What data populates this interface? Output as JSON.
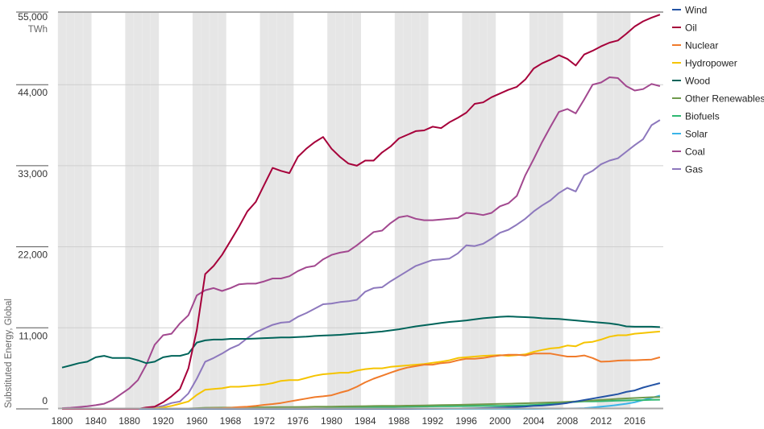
{
  "chart_data": {
    "type": "line",
    "title": "",
    "ylabel": "Substituted Energy, Global",
    "yunit": "TWh",
    "ylim": [
      0,
      54000
    ],
    "yticks": [
      0,
      11000,
      22000,
      33000,
      44000,
      55000
    ],
    "ytick_labels": [
      "0",
      "11,000",
      "22,000",
      "33,000",
      "44,000",
      "55,000"
    ],
    "xtick_labels": [
      "1800",
      "1840",
      "1880",
      "1920",
      "1960",
      "1968",
      "1972",
      "1976",
      "1980",
      "1984",
      "1988",
      "1992",
      "1996",
      "2000",
      "2004",
      "2008",
      "2012",
      "2016"
    ],
    "grid": true,
    "legend_position": "right",
    "x": [
      1800,
      1810,
      1820,
      1830,
      1840,
      1850,
      1860,
      1870,
      1880,
      1890,
      1900,
      1910,
      1920,
      1930,
      1940,
      1950,
      1960,
      1965,
      1966,
      1967,
      1968,
      1969,
      1970,
      1971,
      1972,
      1973,
      1974,
      1975,
      1976,
      1977,
      1978,
      1979,
      1980,
      1981,
      1982,
      1983,
      1984,
      1985,
      1986,
      1987,
      1988,
      1989,
      1990,
      1991,
      1992,
      1993,
      1994,
      1995,
      1996,
      1997,
      1998,
      1999,
      2000,
      2001,
      2002,
      2003,
      2004,
      2005,
      2006,
      2007,
      2008,
      2009,
      2010,
      2011,
      2012,
      2013,
      2014,
      2015,
      2016,
      2017,
      2018,
      2019
    ],
    "series": [
      {
        "name": "Wind",
        "color": "#2353a5",
        "values": [
          0,
          0,
          0,
          0,
          0,
          0,
          0,
          0,
          0,
          0,
          0,
          0,
          0,
          0,
          0,
          0,
          0,
          0,
          0,
          0,
          0,
          0,
          0,
          0,
          0,
          0,
          0,
          0,
          0,
          0,
          0,
          0,
          0,
          0,
          0,
          0,
          0,
          0,
          0,
          0,
          0,
          0,
          10,
          20,
          30,
          40,
          50,
          60,
          70,
          90,
          110,
          140,
          180,
          220,
          270,
          320,
          400,
          450,
          550,
          650,
          800,
          1000,
          1200,
          1400,
          1600,
          1800,
          2000,
          2300,
          2500,
          2900,
          3200,
          3500
        ]
      },
      {
        "name": "Oil",
        "color": "#a6003a",
        "values": [
          0,
          0,
          0,
          0,
          0,
          0,
          0,
          0,
          0,
          0,
          200,
          300,
          900,
          1700,
          2700,
          5500,
          10700,
          18300,
          19400,
          20900,
          22800,
          24700,
          26800,
          28100,
          30400,
          32700,
          32300,
          32000,
          34200,
          35300,
          36200,
          36900,
          35300,
          34200,
          33300,
          33000,
          33700,
          33700,
          34800,
          35600,
          36700,
          37200,
          37700,
          37800,
          38300,
          38100,
          38900,
          39500,
          40200,
          41400,
          41600,
          42300,
          42800,
          43300,
          43700,
          44700,
          46200,
          46900,
          47400,
          48000,
          47500,
          46600,
          48100,
          48600,
          49200,
          49700,
          50000,
          50900,
          51900,
          52600,
          53100,
          53500
        ]
      },
      {
        "name": "Nuclear",
        "color": "#f07b2b",
        "values": [
          0,
          0,
          0,
          0,
          0,
          0,
          0,
          0,
          0,
          0,
          0,
          0,
          0,
          0,
          0,
          0,
          0,
          50,
          80,
          100,
          150,
          250,
          300,
          400,
          550,
          650,
          800,
          1000,
          1200,
          1400,
          1600,
          1700,
          1850,
          2200,
          2500,
          3000,
          3600,
          4100,
          4500,
          4900,
          5300,
          5600,
          5800,
          6000,
          6000,
          6200,
          6300,
          6600,
          6800,
          6800,
          6900,
          7100,
          7250,
          7350,
          7350,
          7250,
          7500,
          7500,
          7500,
          7300,
          7100,
          7100,
          7250,
          6900,
          6400,
          6450,
          6550,
          6600,
          6600,
          6650,
          6700,
          7000
        ]
      },
      {
        "name": "Hydropower",
        "color": "#f5c400",
        "values": [
          0,
          0,
          0,
          0,
          0,
          0,
          0,
          0,
          0,
          0,
          0,
          100,
          200,
          400,
          700,
          1000,
          1900,
          2600,
          2700,
          2800,
          3000,
          3000,
          3100,
          3200,
          3300,
          3500,
          3800,
          3900,
          3900,
          4200,
          4500,
          4700,
          4800,
          4900,
          4900,
          5200,
          5400,
          5500,
          5500,
          5700,
          5800,
          5900,
          6000,
          6100,
          6250,
          6400,
          6600,
          6900,
          7000,
          7100,
          7200,
          7250,
          7300,
          7200,
          7300,
          7400,
          7750,
          8000,
          8200,
          8300,
          8600,
          8500,
          9000,
          9100,
          9400,
          9800,
          10000,
          10000,
          10200,
          10300,
          10400,
          10500
        ]
      },
      {
        "name": "Wood",
        "color": "#00645a",
        "values": [
          5600,
          5900,
          6200,
          6400,
          7000,
          7200,
          6900,
          6900,
          6900,
          6600,
          6200,
          6400,
          7000,
          7200,
          7200,
          7500,
          9000,
          9300,
          9400,
          9400,
          9500,
          9500,
          9500,
          9550,
          9600,
          9650,
          9700,
          9700,
          9750,
          9800,
          9900,
          9950,
          10000,
          10050,
          10150,
          10250,
          10300,
          10400,
          10500,
          10650,
          10800,
          11000,
          11200,
          11350,
          11500,
          11650,
          11800,
          11900,
          12000,
          12150,
          12300,
          12400,
          12500,
          12550,
          12500,
          12450,
          12400,
          12300,
          12250,
          12200,
          12100,
          12000,
          11900,
          11800,
          11700,
          11600,
          11450,
          11200,
          11150,
          11150,
          11150,
          11100
        ]
      },
      {
        "name": "Other Renewables",
        "color": "#6f9a4c",
        "values": [
          0,
          0,
          0,
          0,
          0,
          0,
          0,
          0,
          0,
          0,
          0,
          0,
          0,
          0,
          0,
          50,
          100,
          150,
          160,
          170,
          180,
          190,
          200,
          210,
          220,
          230,
          240,
          250,
          260,
          270,
          290,
          300,
          310,
          330,
          340,
          360,
          370,
          390,
          400,
          410,
          420,
          440,
          450,
          470,
          490,
          510,
          530,
          550,
          570,
          600,
          620,
          650,
          680,
          700,
          730,
          760,
          790,
          830,
          870,
          910,
          960,
          1010,
          1080,
          1150,
          1220,
          1290,
          1360,
          1420,
          1480,
          1530,
          1580,
          1620
        ]
      },
      {
        "name": "Biofuels",
        "color": "#2eb872",
        "values": [
          0,
          0,
          0,
          0,
          0,
          0,
          0,
          0,
          0,
          0,
          0,
          0,
          0,
          0,
          0,
          0,
          0,
          20,
          20,
          20,
          30,
          30,
          30,
          40,
          40,
          50,
          50,
          60,
          70,
          80,
          90,
          100,
          120,
          140,
          160,
          180,
          200,
          220,
          240,
          260,
          280,
          300,
          320,
          330,
          340,
          350,
          360,
          370,
          380,
          390,
          400,
          410,
          420,
          440,
          460,
          490,
          530,
          600,
          680,
          780,
          880,
          940,
          1000,
          1020,
          1040,
          1080,
          1130,
          1150,
          1170,
          1190,
          1220,
          1250
        ]
      },
      {
        "name": "Solar",
        "color": "#3ab4e8",
        "values": [
          0,
          0,
          0,
          0,
          0,
          0,
          0,
          0,
          0,
          0,
          0,
          0,
          0,
          0,
          0,
          0,
          0,
          0,
          0,
          0,
          0,
          0,
          0,
          0,
          0,
          0,
          0,
          0,
          0,
          0,
          0,
          0,
          0,
          0,
          0,
          0,
          0,
          0,
          0,
          0,
          0,
          0,
          0,
          0,
          0,
          0,
          0,
          0,
          0,
          0,
          0,
          0,
          0,
          0,
          0,
          0,
          0,
          10,
          20,
          30,
          50,
          70,
          100,
          200,
          300,
          400,
          550,
          700,
          900,
          1200,
          1500,
          1800
        ]
      },
      {
        "name": "Coal",
        "color": "#a2488f",
        "values": [
          100,
          150,
          250,
          350,
          500,
          700,
          1200,
          2000,
          2800,
          3900,
          6000,
          8700,
          10000,
          10200,
          11600,
          12700,
          15400,
          16100,
          16400,
          16000,
          16400,
          16900,
          17000,
          17000,
          17300,
          17700,
          17700,
          18000,
          18700,
          19200,
          19400,
          20300,
          20900,
          21200,
          21400,
          22200,
          23100,
          24000,
          24200,
          25200,
          26000,
          26200,
          25800,
          25600,
          25600,
          25700,
          25800,
          25900,
          26600,
          26500,
          26300,
          26600,
          27500,
          27900,
          28900,
          31700,
          33900,
          36200,
          38300,
          40300,
          40700,
          40100,
          42000,
          44000,
          44300,
          45000,
          44900,
          43800,
          43200,
          43400,
          44100,
          43800
        ]
      },
      {
        "name": "Gas",
        "color": "#8d78bd",
        "values": [
          0,
          0,
          0,
          0,
          0,
          0,
          0,
          0,
          0,
          0,
          100,
          200,
          400,
          800,
          1000,
          2100,
          4100,
          6400,
          6900,
          7500,
          8200,
          8700,
          9600,
          10400,
          10900,
          11400,
          11700,
          11800,
          12500,
          13000,
          13600,
          14200,
          14300,
          14500,
          14600,
          14800,
          15900,
          16400,
          16500,
          17300,
          18000,
          18700,
          19400,
          19800,
          20200,
          20300,
          20400,
          21100,
          22200,
          22100,
          22400,
          23100,
          23900,
          24300,
          25000,
          25800,
          26800,
          27600,
          28300,
          29300,
          30000,
          29500,
          31700,
          32300,
          33200,
          33700,
          34000,
          34900,
          35800,
          36600,
          38500,
          39200
        ]
      }
    ]
  }
}
